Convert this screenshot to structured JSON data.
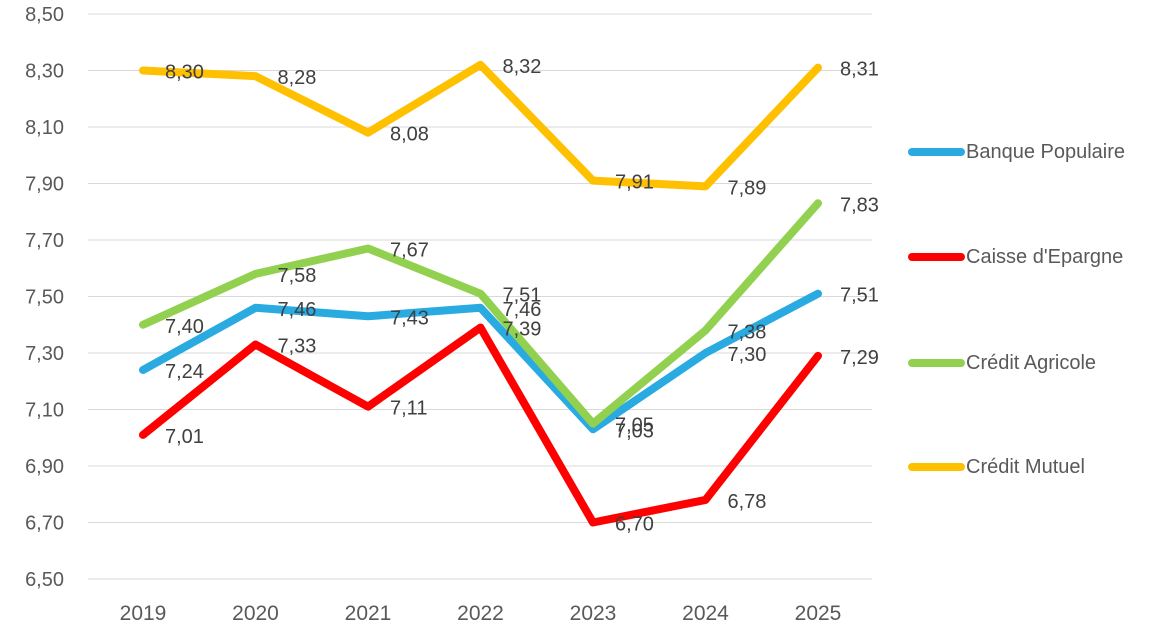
{
  "chart_data": {
    "type": "line",
    "title": "",
    "x_tick_labels": [
      "2019",
      "2020",
      "2021",
      "2022",
      "2023",
      "2024",
      "2025"
    ],
    "ylim": [
      6.5,
      8.5
    ],
    "y_tick_step": 0.2,
    "y_tick_labels": [
      "6,50",
      "6,70",
      "6,90",
      "7,10",
      "7,30",
      "7,50",
      "7,70",
      "7,90",
      "8,10",
      "8,30",
      "8,50"
    ],
    "grid": true,
    "legend_position": "right",
    "decimal_separator": ",",
    "series": [
      {
        "name": "Banque Populaire",
        "color": "#29ABE2",
        "values": [
          7.24,
          7.46,
          7.43,
          7.46,
          7.03,
          7.3,
          7.51
        ],
        "labels": [
          "7,24",
          "7,46",
          "7,43",
          "7,46",
          "7,03",
          "7,30",
          "7,51"
        ]
      },
      {
        "name": "Caisse d'Epargne",
        "color": "#FF0000",
        "values": [
          7.01,
          7.33,
          7.11,
          7.39,
          6.7,
          6.78,
          7.29
        ],
        "labels": [
          "7,01",
          "7,33",
          "7,11",
          "7,39",
          "6,70",
          "6,78",
          "7,29"
        ]
      },
      {
        "name": "Crédit Agricole",
        "color": "#92D050",
        "values": [
          7.4,
          7.58,
          7.67,
          7.51,
          7.05,
          7.38,
          7.83
        ],
        "labels": [
          "7,40",
          "7,58",
          "7,67",
          "7,51",
          "7,05",
          "7,38",
          "7,83"
        ]
      },
      {
        "name": "Crédit Mutuel",
        "color": "#FFC000",
        "values": [
          8.3,
          8.28,
          8.08,
          8.32,
          7.91,
          7.89,
          8.31
        ],
        "labels": [
          "8,30",
          "8,28",
          "8,08",
          "8,32",
          "7,91",
          "7,89",
          "8,31"
        ]
      }
    ]
  },
  "theme": {
    "background": "#FFFFFF",
    "gridline_color": "#D9D9D9",
    "axis_text_color": "#595959",
    "data_label_color": "#404040",
    "legend_text_color": "#595959"
  }
}
